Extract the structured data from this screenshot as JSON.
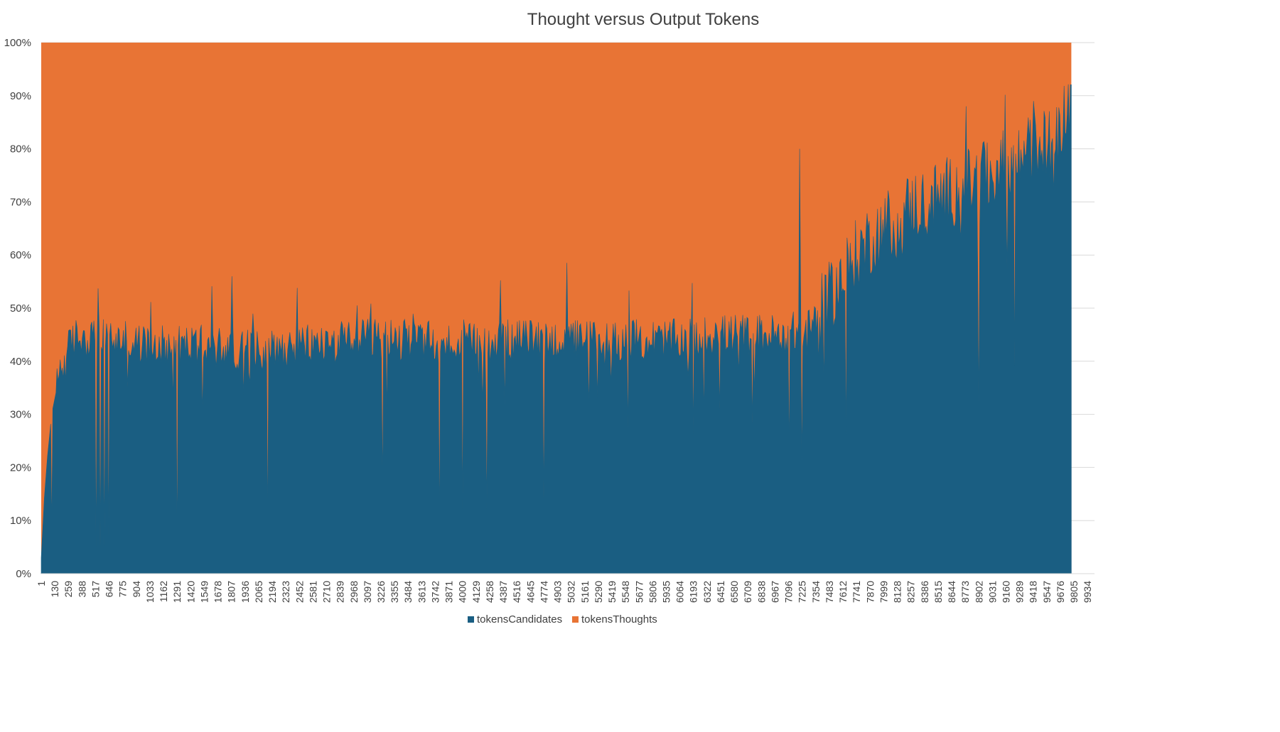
{
  "chart_data": {
    "type": "area",
    "stacked": "percent",
    "title": "Thought versus Output Tokens",
    "xlabel": "",
    "ylabel": "",
    "ylim": [
      0,
      100
    ],
    "y_ticks": [
      "0%",
      "10%",
      "20%",
      "30%",
      "40%",
      "50%",
      "60%",
      "70%",
      "80%",
      "90%",
      "100%"
    ],
    "x_ticks": [
      "1",
      "130",
      "259",
      "388",
      "517",
      "646",
      "775",
      "904",
      "1033",
      "1162",
      "1291",
      "1420",
      "1549",
      "1678",
      "1807",
      "1936",
      "2065",
      "2194",
      "2323",
      "2452",
      "2581",
      "2710",
      "2839",
      "2968",
      "3097",
      "3226",
      "3355",
      "3484",
      "3613",
      "3742",
      "3871",
      "4000",
      "4129",
      "4258",
      "4387",
      "4516",
      "4645",
      "4774",
      "4903",
      "5032",
      "5161",
      "5290",
      "5419",
      "5548",
      "5677",
      "5806",
      "5935",
      "6064",
      "6193",
      "6322",
      "6451",
      "6580",
      "6709",
      "6838",
      "6967",
      "7096",
      "7225",
      "7354",
      "7483",
      "7612",
      "7741",
      "7870",
      "7999",
      "8128",
      "8257",
      "8386",
      "8515",
      "8644",
      "8773",
      "8902",
      "9031",
      "9160",
      "9289",
      "9418",
      "9547",
      "9676",
      "9805",
      "9934"
    ],
    "x_range": [
      1,
      10000
    ],
    "data_last_x": 9780,
    "series": [
      {
        "name": "tokensCandidates",
        "color": "#1a5e82",
        "description_points": {
          "x": [
            1,
            30,
            60,
            100,
            150,
            200,
            259,
            300,
            388,
            500,
            700,
            1000,
            1500,
            2000,
            2500,
            3000,
            3500,
            4000,
            4500,
            5000,
            5500,
            6000,
            6500,
            7000,
            7300,
            7483,
            7612,
            7741,
            7870,
            8000,
            8128,
            8257,
            8386,
            8515,
            8644,
            8773,
            8902,
            9031,
            9160,
            9289,
            9418,
            9547,
            9676,
            9780
          ],
          "y": [
            3,
            14,
            22,
            30,
            35,
            39,
            42,
            44,
            45,
            44,
            44,
            43,
            43,
            42,
            43,
            44,
            44,
            43,
            44,
            44,
            44,
            44,
            45,
            45,
            46,
            52,
            56,
            60,
            63,
            65,
            67,
            69,
            70,
            71,
            72,
            73,
            74,
            75,
            76,
            78,
            80,
            81,
            83,
            90
          ]
        },
        "spikes_down": [
          [
            100,
            9
          ],
          [
            517,
            5
          ],
          [
            560,
            5
          ],
          [
            600,
            5
          ],
          [
            640,
            7
          ],
          [
            1291,
            6
          ],
          [
            2150,
            10
          ],
          [
            3240,
            17
          ],
          [
            3780,
            10
          ],
          [
            4000,
            12
          ],
          [
            4230,
            12
          ],
          [
            4774,
            14
          ],
          [
            6193,
            26
          ],
          [
            7100,
            24
          ],
          [
            7225,
            21
          ],
          [
            7640,
            26
          ],
          [
            8902,
            32
          ],
          [
            9240,
            39
          ],
          [
            9420,
            39
          ]
        ],
        "spikes_up": [
          [
            1807,
            56
          ],
          [
            7200,
            80
          ],
          [
            8780,
            88
          ],
          [
            9420,
            89
          ]
        ]
      },
      {
        "name": "tokensThoughts",
        "color": "#e87435",
        "description": "remainder to 100%"
      }
    ],
    "legend": {
      "position": "bottom",
      "entries": [
        "tokensCandidates",
        "tokensThoughts"
      ]
    },
    "grid": "horizontal"
  }
}
